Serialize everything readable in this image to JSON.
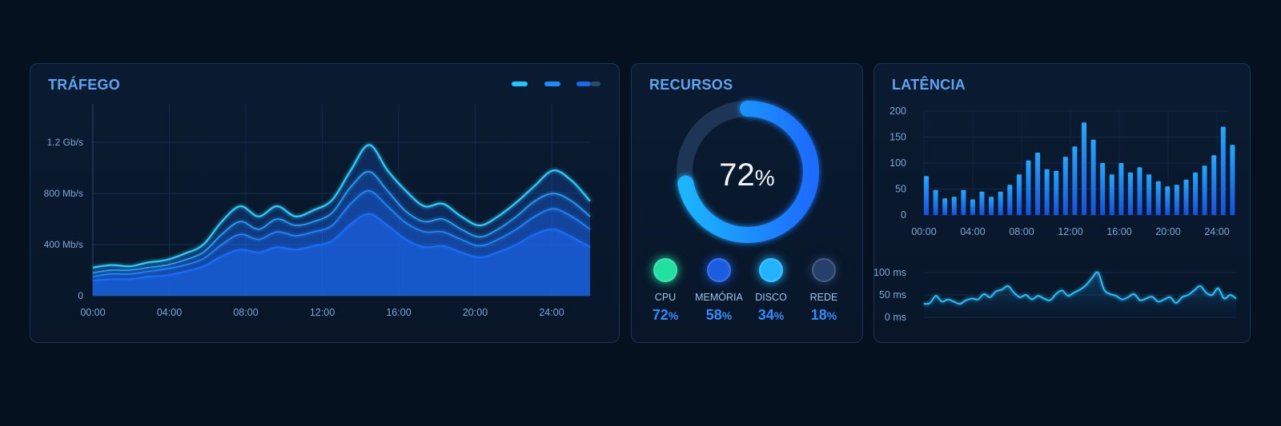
{
  "panels": {
    "traffic": {
      "title": "TRÁFEGO",
      "legend_colors": [
        "#1ec8ff",
        "#1a8cff",
        "#1668e8"
      ]
    },
    "resources": {
      "title": "RECURSOS",
      "gauge_value": "72",
      "gauge_unit": "%",
      "items": [
        {
          "label": "CPU",
          "value": "72",
          "unit": "%",
          "color": "#22e0a0"
        },
        {
          "label": "MEMÓRIA",
          "value": "58",
          "unit": "%",
          "color": "#1a5de0"
        },
        {
          "label": "DISCO",
          "value": "34",
          "unit": "%",
          "color": "#22b4ff"
        },
        {
          "label": "REDE",
          "value": "18",
          "unit": "%",
          "color": "#27406a"
        }
      ]
    },
    "latency": {
      "title": "LATÊNCIA"
    }
  },
  "chart_data": [
    {
      "type": "area",
      "x_labels": [
        "00:00",
        "04:00",
        "08:00",
        "12:00",
        "16:00",
        "20:00",
        "24:00"
      ],
      "y_ticks": [
        "0",
        "400 Mb/s",
        "800 Mb/s",
        "1.2 Gb/s"
      ],
      "ylim": [
        0,
        1.5
      ],
      "x": [
        0,
        1,
        2,
        3,
        4,
        5,
        6,
        7,
        8,
        9,
        10,
        11,
        12,
        13,
        14,
        15,
        16,
        17,
        18,
        19,
        20,
        21,
        22,
        23,
        24,
        25,
        26,
        27
      ],
      "series": [
        {
          "values": [
            0.22,
            0.24,
            0.23,
            0.26,
            0.28,
            0.33,
            0.4,
            0.58,
            0.7,
            0.62,
            0.7,
            0.62,
            0.67,
            0.75,
            0.98,
            1.18,
            0.98,
            0.82,
            0.7,
            0.72,
            0.62,
            0.55,
            0.62,
            0.73,
            0.86,
            0.98,
            0.9,
            0.74
          ]
        },
        {
          "values": [
            0.18,
            0.2,
            0.2,
            0.22,
            0.24,
            0.28,
            0.34,
            0.48,
            0.58,
            0.52,
            0.6,
            0.55,
            0.58,
            0.65,
            0.85,
            0.97,
            0.82,
            0.66,
            0.58,
            0.6,
            0.52,
            0.46,
            0.52,
            0.62,
            0.74,
            0.8,
            0.74,
            0.62
          ]
        },
        {
          "values": [
            0.15,
            0.17,
            0.17,
            0.19,
            0.21,
            0.24,
            0.29,
            0.4,
            0.48,
            0.44,
            0.5,
            0.47,
            0.5,
            0.55,
            0.72,
            0.82,
            0.7,
            0.57,
            0.5,
            0.5,
            0.44,
            0.39,
            0.44,
            0.52,
            0.62,
            0.68,
            0.62,
            0.52
          ]
        },
        {
          "values": [
            0.12,
            0.13,
            0.13,
            0.15,
            0.16,
            0.19,
            0.23,
            0.31,
            0.36,
            0.34,
            0.38,
            0.36,
            0.39,
            0.43,
            0.56,
            0.64,
            0.55,
            0.44,
            0.38,
            0.39,
            0.34,
            0.3,
            0.34,
            0.4,
            0.48,
            0.52,
            0.46,
            0.38
          ]
        }
      ]
    },
    {
      "type": "bar",
      "x_labels": [
        "00:00",
        "04:00",
        "08:00",
        "12:00",
        "16:00",
        "20:00",
        "24:00"
      ],
      "y_ticks": [
        "0",
        "50",
        "100",
        "150",
        "200"
      ],
      "ylim": [
        0,
        200
      ],
      "values": [
        75,
        48,
        32,
        35,
        48,
        30,
        45,
        35,
        45,
        58,
        78,
        105,
        120,
        88,
        85,
        112,
        132,
        178,
        145,
        100,
        78,
        100,
        82,
        92,
        78,
        65,
        55,
        58,
        68,
        82,
        95,
        115,
        170,
        135
      ]
    },
    {
      "type": "line",
      "y_ticks": [
        "0 ms",
        "50 ms",
        "100 ms"
      ],
      "ylim": [
        0,
        100
      ],
      "values": [
        30,
        32,
        48,
        35,
        40,
        35,
        30,
        38,
        42,
        40,
        52,
        45,
        58,
        62,
        70,
        55,
        45,
        50,
        40,
        48,
        42,
        38,
        52,
        60,
        48,
        55,
        62,
        72,
        88,
        100,
        62,
        52,
        48,
        40,
        45,
        52,
        38,
        42,
        46,
        35,
        40,
        45,
        32,
        45,
        50,
        60,
        70,
        55,
        50,
        65,
        42,
        50,
        42
      ]
    }
  ]
}
